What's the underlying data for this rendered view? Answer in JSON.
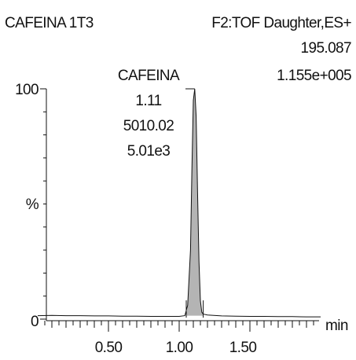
{
  "header": {
    "sample_name": "CAFEINA 1T3",
    "function_line": "F2:TOF Daughter,ES+",
    "mass": "195.087",
    "intensity": "1.155e+005"
  },
  "peak_label": {
    "name": "CAFEINA",
    "retention_time": "1.11",
    "area": "5010.02",
    "height": "5.01e3"
  },
  "chart_data": {
    "type": "line",
    "title": "CAFEINA 1T3",
    "xlabel": "min",
    "ylabel": "%",
    "xlim": [
      0.0,
      2.0
    ],
    "ylim": [
      0,
      100
    ],
    "x_ticks": [
      0.5,
      1.0,
      1.5
    ],
    "x_tick_labels": [
      "0.50",
      "1.00",
      "1.50"
    ],
    "y_tick_labels": [
      "0",
      "%",
      "100"
    ],
    "series": [
      {
        "color": "#111111",
        "fill": "#b4b4b4",
        "x": [
          0.0,
          0.1,
          0.2,
          0.3,
          0.4,
          0.5,
          0.6,
          0.7,
          0.8,
          0.9,
          1.0,
          1.04,
          1.06,
          1.08,
          1.09,
          1.1,
          1.11,
          1.12,
          1.13,
          1.14,
          1.15,
          1.16,
          1.17,
          1.2,
          1.3,
          1.4,
          1.5,
          1.6,
          1.7,
          1.8,
          1.9,
          2.0
        ],
        "y": [
          1.5,
          1.6,
          1.5,
          1.5,
          1.4,
          1.4,
          1.3,
          1.3,
          1.2,
          1.2,
          1.2,
          1.5,
          6,
          30,
          65,
          95,
          100,
          88,
          55,
          25,
          8,
          3,
          2.2,
          1.8,
          1.4,
          1.3,
          1.2,
          1.2,
          1.1,
          1.1,
          1.0,
          1.0
        ]
      }
    ],
    "integration_limits": [
      1.05,
      1.17
    ]
  }
}
